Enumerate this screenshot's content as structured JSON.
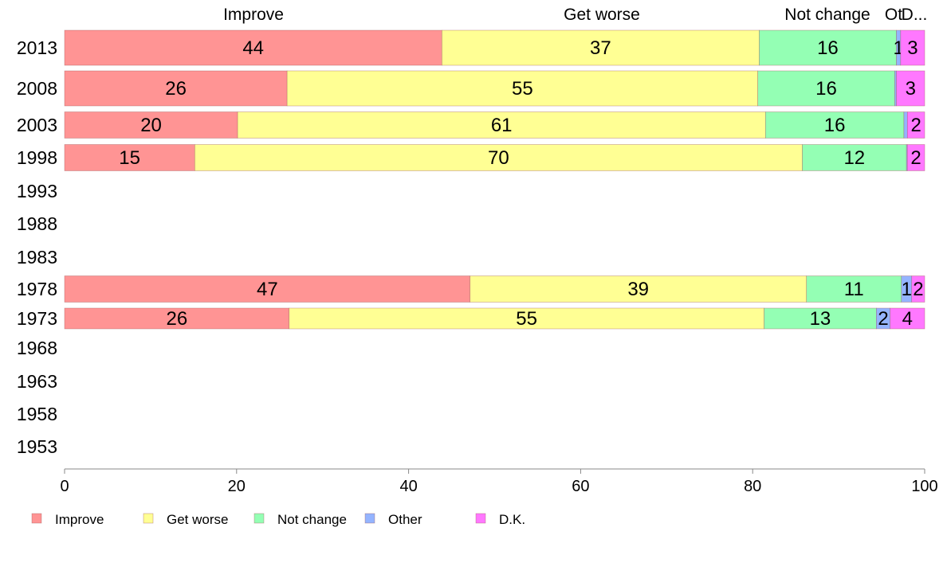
{
  "chart_data": {
    "type": "bar",
    "orientation": "horizontal",
    "stacked": true,
    "categories": [
      "2013",
      "2008",
      "2003",
      "1998",
      "1993",
      "1988",
      "1983",
      "1978",
      "1973",
      "1968",
      "1963",
      "1958",
      "1953"
    ],
    "series": [
      {
        "name": "Improve",
        "color": "#ff9494",
        "values": [
          44,
          26,
          20,
          15,
          null,
          null,
          null,
          47,
          26,
          null,
          null,
          null,
          null
        ],
        "labels": [
          "44",
          "26",
          "20",
          "15",
          "",
          "",
          "",
          "47",
          "26",
          "",
          "",
          "",
          ""
        ]
      },
      {
        "name": "Get worse",
        "color": "#ffff94",
        "values": [
          37,
          55,
          61,
          70,
          null,
          null,
          null,
          39,
          55,
          null,
          null,
          null,
          null
        ],
        "labels": [
          "37",
          "55",
          "61",
          "70",
          "",
          "",
          "",
          "39",
          "55",
          "",
          "",
          "",
          ""
        ]
      },
      {
        "name": "Not change",
        "color": "#94ffb4",
        "values": [
          16,
          16,
          16,
          12,
          null,
          null,
          null,
          11,
          13,
          null,
          null,
          null,
          null
        ],
        "labels": [
          "16",
          "16",
          "16",
          "12",
          "",
          "",
          "",
          "11",
          "13",
          "",
          "",
          "",
          ""
        ]
      },
      {
        "name": "Other",
        "color": "#94b4ff",
        "values": [
          0.5,
          0.2,
          0.4,
          0.1,
          null,
          null,
          null,
          1.2,
          1.6,
          null,
          null,
          null,
          null
        ],
        "labels": [
          "1",
          "",
          "",
          "",
          "",
          "",
          "",
          "1",
          "2",
          "",
          "",
          "",
          ""
        ]
      },
      {
        "name": "D.K.",
        "color": "#ff78ff",
        "values": [
          2.8,
          3.3,
          2.0,
          2.0,
          null,
          null,
          null,
          1.5,
          4.0,
          null,
          null,
          null,
          null
        ],
        "labels": [
          "3",
          "3",
          "2",
          "2",
          "",
          "",
          "",
          "2",
          "4",
          "",
          "",
          "",
          ""
        ]
      }
    ],
    "top_labels": [
      "Improve",
      "Get worse",
      "Not change",
      "Other",
      "D.K."
    ],
    "top_labels_display": [
      "Improve",
      "Get worse",
      "Not change",
      "Ot",
      "D..."
    ],
    "xlim": [
      0,
      100
    ],
    "xticks": [
      0,
      20,
      40,
      60,
      80,
      100
    ],
    "title": "",
    "xlabel": "",
    "ylabel": "",
    "legend_position": "bottom-left",
    "grid": false
  }
}
